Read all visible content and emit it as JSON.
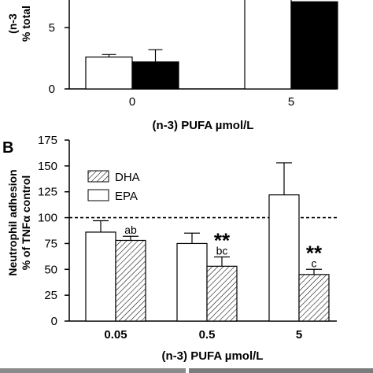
{
  "panel_b_label": "B",
  "chart_data": [
    {
      "type": "bar",
      "panel": "",
      "ylabel_line1": "(n-3",
      "ylabel_line2": "% total",
      "xlabel": "(n-3) PUFA µmol/L",
      "categories": [
        "0",
        "5"
      ],
      "yticks": [
        "0",
        "5"
      ],
      "ylim": [
        0,
        10.5
      ],
      "series": [
        {
          "name": "",
          "fill": "#ffffff",
          "values": [
            2.6,
            11.0
          ],
          "errors": [
            0.2,
            0.4
          ]
        },
        {
          "name": "",
          "fill": "#000000",
          "values": [
            2.2,
            7.1
          ],
          "errors": [
            1.0,
            0.3
          ]
        }
      ]
    },
    {
      "type": "bar",
      "panel": "B",
      "title": "",
      "ylabel_line1": "Neutrophil adhesion",
      "ylabel_line2": "% of TNFα control",
      "xlabel": "(n-3) PUFA µmol/L",
      "categories": [
        "0.05",
        "0.5",
        "5"
      ],
      "yticks": [
        "0",
        "25",
        "50",
        "75",
        "100",
        "125",
        "150",
        "175"
      ],
      "ylim": [
        0,
        175
      ],
      "reference_line": 100,
      "legend_position": "top-left",
      "series": [
        {
          "name": "EPA",
          "pattern": "white",
          "values": [
            86,
            75,
            122
          ],
          "errors": [
            11,
            10,
            31
          ]
        },
        {
          "name": "DHA",
          "pattern": "hatched",
          "values": [
            78,
            53,
            45
          ],
          "errors": [
            4,
            9,
            5
          ]
        }
      ],
      "annotations": [
        {
          "category": "0.05",
          "series": "DHA",
          "letter": "ab",
          "stars": ""
        },
        {
          "category": "0.5",
          "series": "DHA",
          "letter": "bc",
          "stars": "**"
        },
        {
          "category": "5",
          "series": "DHA",
          "letter": "c",
          "stars": "**"
        }
      ]
    }
  ]
}
